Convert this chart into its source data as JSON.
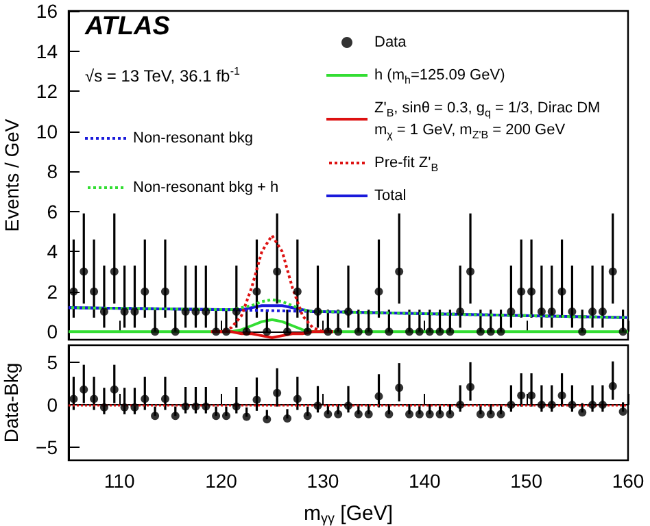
{
  "chart_data": [
    {
      "type": "line",
      "ylabel": "Events / GeV",
      "xlim": [
        105,
        160
      ],
      "xticks": [
        110,
        120,
        130,
        140,
        150,
        160
      ],
      "ylim": [
        -0.4,
        16
      ],
      "yticks": [
        0,
        2,
        4,
        6,
        8,
        10,
        12,
        14,
        16
      ],
      "tick_labels": "y",
      "legend": "top",
      "annotations": [
        "ATLAS",
        "√s = 13 TeV, 36.1 fb$^{-1}$"
      ],
      "series": [
        {
          "name": "Non-resonant bkg",
          "color": "#1a1adb",
          "line_style": "dotted",
          "marker": "none",
          "x": [
            105,
            120,
            140,
            160
          ],
          "values": [
            1.2,
            1.1,
            0.9,
            0.7
          ]
        },
        {
          "name": "Non-resonant bkg + h",
          "color": "#33dd33",
          "line_style": "dotted",
          "marker": "none",
          "x": [
            105,
            120,
            121,
            122,
            123,
            124,
            125,
            126,
            127,
            128,
            129,
            130,
            140,
            160
          ],
          "values": [
            1.2,
            1.1,
            1.1,
            1.2,
            1.3,
            1.5,
            1.6,
            1.5,
            1.3,
            1.1,
            1.0,
            1.0,
            0.9,
            0.7
          ]
        },
        {
          "name": "Data",
          "type": "scatter",
          "color": "#000000",
          "marker": "circle",
          "x": [
            105.5,
            106.5,
            107.5,
            108.5,
            109.5,
            110.5,
            111.5,
            112.5,
            113.5,
            114.5,
            115.5,
            116.5,
            117.5,
            118.5,
            119.5,
            120.5,
            121.5,
            122.5,
            123.5,
            124.5,
            125.5,
            126.5,
            127.5,
            128.5,
            129.5,
            130.5,
            131.5,
            132.5,
            133.5,
            134.5,
            135.5,
            136.5,
            137.5,
            138.5,
            139.5,
            140.5,
            141.5,
            142.5,
            143.5,
            144.5,
            145.5,
            146.5,
            147.5,
            148.5,
            149.5,
            150.5,
            151.5,
            152.5,
            153.5,
            154.5,
            155.5,
            156.5,
            157.5,
            158.5,
            159.5
          ],
          "values": [
            2,
            3,
            2,
            1,
            3,
            1,
            1,
            2,
            0,
            2,
            0,
            1,
            1,
            1,
            0,
            0,
            1,
            0,
            2,
            0,
            3,
            0,
            2,
            0,
            1,
            0,
            0,
            1,
            0,
            0,
            2,
            0,
            3,
            0,
            0,
            0,
            0,
            0,
            1,
            3,
            0,
            0,
            0,
            1,
            2,
            2,
            1,
            1,
            2,
            1,
            0,
            1,
            1,
            3,
            0
          ],
          "errors": [
            [
              0.7,
              4.6
            ],
            [
              1.4,
              5.9
            ],
            [
              0.7,
              4.6
            ],
            [
              0.2,
              3.3
            ],
            [
              1.4,
              5.9
            ],
            [
              0.2,
              3.3
            ],
            [
              0.2,
              3.3
            ],
            [
              0.7,
              4.6
            ],
            [
              0,
              1.1
            ],
            [
              0.7,
              4.6
            ],
            [
              0,
              1.1
            ],
            [
              0.2,
              3.3
            ],
            [
              0.2,
              3.3
            ],
            [
              0.2,
              3.3
            ],
            [
              0,
              1.1
            ],
            [
              0,
              1.1
            ],
            [
              0.2,
              3.3
            ],
            [
              0,
              1.1
            ],
            [
              0.7,
              4.6
            ],
            [
              0,
              1.1
            ],
            [
              1.4,
              5.9
            ],
            [
              0,
              1.1
            ],
            [
              0.7,
              4.6
            ],
            [
              0,
              1.1
            ],
            [
              0.2,
              3.3
            ],
            [
              0,
              1.1
            ],
            [
              0,
              1.1
            ],
            [
              0.2,
              3.3
            ],
            [
              0,
              1.1
            ],
            [
              0,
              1.1
            ],
            [
              0.7,
              4.6
            ],
            [
              0,
              1.1
            ],
            [
              1.4,
              5.9
            ],
            [
              0,
              1.1
            ],
            [
              0,
              1.1
            ],
            [
              0,
              1.1
            ],
            [
              0,
              1.1
            ],
            [
              0,
              1.1
            ],
            [
              0.2,
              3.3
            ],
            [
              1.4,
              5.9
            ],
            [
              0,
              1.1
            ],
            [
              0,
              1.1
            ],
            [
              0,
              1.1
            ],
            [
              0.2,
              3.3
            ],
            [
              0.7,
              4.6
            ],
            [
              0.7,
              4.6
            ],
            [
              0.2,
              3.3
            ],
            [
              0.2,
              3.3
            ],
            [
              0.7,
              4.6
            ],
            [
              0.2,
              3.3
            ],
            [
              0,
              1.1
            ],
            [
              0.2,
              3.3
            ],
            [
              0.2,
              3.3
            ],
            [
              1.4,
              5.9
            ],
            [
              0,
              1.1
            ]
          ]
        },
        {
          "name": "h (m$_{h}$=125.09 GeV)",
          "color": "#33dd33",
          "line_style": "solid",
          "marker": "none",
          "x": [
            105,
            120,
            121,
            122,
            123,
            124,
            125,
            126,
            127,
            128,
            129,
            130,
            160
          ],
          "values": [
            0,
            0,
            0,
            0.1,
            0.3,
            0.5,
            0.6,
            0.5,
            0.3,
            0.1,
            0,
            0,
            0
          ]
        },
        {
          "name": "Z'$_{B}$, sinθ = 0.3, g$_{q}$ = 1/3, Dirac DM\nm$_{χ}$ = 1 GeV, m$_{Z'B}$ = 200 GeV",
          "color": "#dd1111",
          "line_style": "solid",
          "marker": "none",
          "x": [
            119,
            120,
            121,
            122,
            123,
            124,
            125,
            126,
            127,
            128,
            129,
            130,
            131
          ],
          "values": [
            0,
            0,
            0,
            -0.1,
            -0.1,
            -0.2,
            -0.3,
            -0.2,
            -0.1,
            -0.1,
            0,
            0,
            0
          ]
        },
        {
          "name": "Pre-fit Z'$_{B}$",
          "color": "#dd1111",
          "line_style": "dotted",
          "marker": "none",
          "x": [
            119,
            120,
            121,
            122,
            123,
            124,
            125,
            126,
            127,
            128,
            129,
            130,
            131
          ],
          "values": [
            0,
            0,
            0.2,
            0.8,
            2.2,
            4.0,
            4.8,
            4.0,
            2.2,
            0.8,
            0.2,
            0,
            0
          ]
        },
        {
          "name": "Total",
          "color": "#1a1adb",
          "line_style": "solid",
          "marker": "none",
          "x": [
            105,
            120,
            121,
            122,
            123,
            124,
            125,
            126,
            127,
            128,
            129,
            130,
            140,
            160
          ],
          "values": [
            1.2,
            1.1,
            1.1,
            1.1,
            1.2,
            1.3,
            1.3,
            1.3,
            1.2,
            1.1,
            1.0,
            1.0,
            0.9,
            0.7
          ]
        }
      ]
    },
    {
      "type": "scatter",
      "xlabel": "m$_{γγ}$ [GeV]",
      "ylabel": "Data-Bkg",
      "xlim": [
        105,
        160
      ],
      "xticks": [
        110,
        120,
        130,
        140,
        150,
        160
      ],
      "ylim": [
        -6.5,
        7
      ],
      "yticks": [
        -5,
        0,
        5
      ],
      "marker": "circle",
      "ref_lines": [
        {
          "axis": "y",
          "value": 0,
          "color": "#dd1111",
          "line_style": "dotted"
        }
      ],
      "series": [
        {
          "color": "#000000",
          "x": [
            105.5,
            106.5,
            107.5,
            108.5,
            109.5,
            110.5,
            111.5,
            112.5,
            113.5,
            114.5,
            115.5,
            116.5,
            117.5,
            118.5,
            119.5,
            120.5,
            121.5,
            122.5,
            123.5,
            124.5,
            125.5,
            126.5,
            127.5,
            128.5,
            129.5,
            130.5,
            131.5,
            132.5,
            133.5,
            134.5,
            135.5,
            136.5,
            137.5,
            138.5,
            139.5,
            140.5,
            141.5,
            142.5,
            143.5,
            144.5,
            145.5,
            146.5,
            147.5,
            148.5,
            149.5,
            150.5,
            151.5,
            152.5,
            153.5,
            154.5,
            155.5,
            156.5,
            157.5,
            158.5,
            159.5
          ],
          "values": [
            0.7,
            1.8,
            0.7,
            -0.3,
            1.8,
            -0.3,
            -0.3,
            0.7,
            -1.3,
            0.7,
            -1.3,
            -0.2,
            -0.2,
            -0.2,
            -1.3,
            -1.3,
            -0.2,
            -1.4,
            0.6,
            -1.7,
            1.4,
            -1.6,
            0.7,
            -1.3,
            -0.1,
            -1.1,
            -1.1,
            -0.1,
            -1.1,
            -1.1,
            1.0,
            -1.1,
            2.0,
            -1.1,
            -1.1,
            -1.1,
            -1.1,
            -1.1,
            0,
            2.1,
            -1.1,
            -1.1,
            -1.1,
            0,
            1.1,
            1.1,
            0,
            0,
            1.1,
            0,
            -0.9,
            0,
            0,
            2.2,
            -0.8
          ],
          "errors": [
            [
              -0.6,
              3.3
            ],
            [
              0.2,
              4.7
            ],
            [
              -0.6,
              3.3
            ],
            [
              -1.1,
              2.0
            ],
            [
              0.2,
              4.7
            ],
            [
              -1.1,
              2.0
            ],
            [
              -1.1,
              2.0
            ],
            [
              -0.6,
              3.3
            ],
            [
              -1.3,
              -0.2
            ],
            [
              -0.6,
              3.3
            ],
            [
              -1.3,
              -0.2
            ],
            [
              -1.0,
              2.1
            ],
            [
              -1.0,
              2.1
            ],
            [
              -1.0,
              2.1
            ],
            [
              -1.3,
              -0.2
            ],
            [
              -1.3,
              -0.2
            ],
            [
              -1.0,
              2.1
            ],
            [
              -1.4,
              -0.3
            ],
            [
              -0.7,
              3.2
            ],
            [
              -1.7,
              -0.6
            ],
            [
              -0.2,
              4.3
            ],
            [
              -1.6,
              -0.5
            ],
            [
              -0.6,
              3.3
            ],
            [
              -1.3,
              -0.2
            ],
            [
              -0.9,
              2.2
            ],
            [
              -1.1,
              0
            ],
            [
              -1.1,
              0
            ],
            [
              -0.9,
              2.2
            ],
            [
              -1.1,
              0
            ],
            [
              -1.1,
              0
            ],
            [
              -0.3,
              3.6
            ],
            [
              -1.1,
              0
            ],
            [
              0.4,
              4.9
            ],
            [
              -1.1,
              0
            ],
            [
              -1.1,
              0
            ],
            [
              -1.1,
              0
            ],
            [
              -1.1,
              0
            ],
            [
              -1.1,
              0
            ],
            [
              -0.8,
              2.3
            ],
            [
              0.5,
              5.0
            ],
            [
              -1.1,
              0
            ],
            [
              -1.1,
              0
            ],
            [
              -1.1,
              0
            ],
            [
              -0.8,
              2.3
            ],
            [
              -0.2,
              3.7
            ],
            [
              -0.2,
              3.7
            ],
            [
              -0.8,
              2.3
            ],
            [
              -0.8,
              2.3
            ],
            [
              -0.2,
              3.7
            ],
            [
              -0.8,
              2.3
            ],
            [
              -0.9,
              0.2
            ],
            [
              -0.8,
              2.3
            ],
            [
              -0.8,
              2.3
            ],
            [
              0.6,
              5.1
            ],
            [
              -0.8,
              0.3
            ]
          ]
        }
      ]
    }
  ]
}
